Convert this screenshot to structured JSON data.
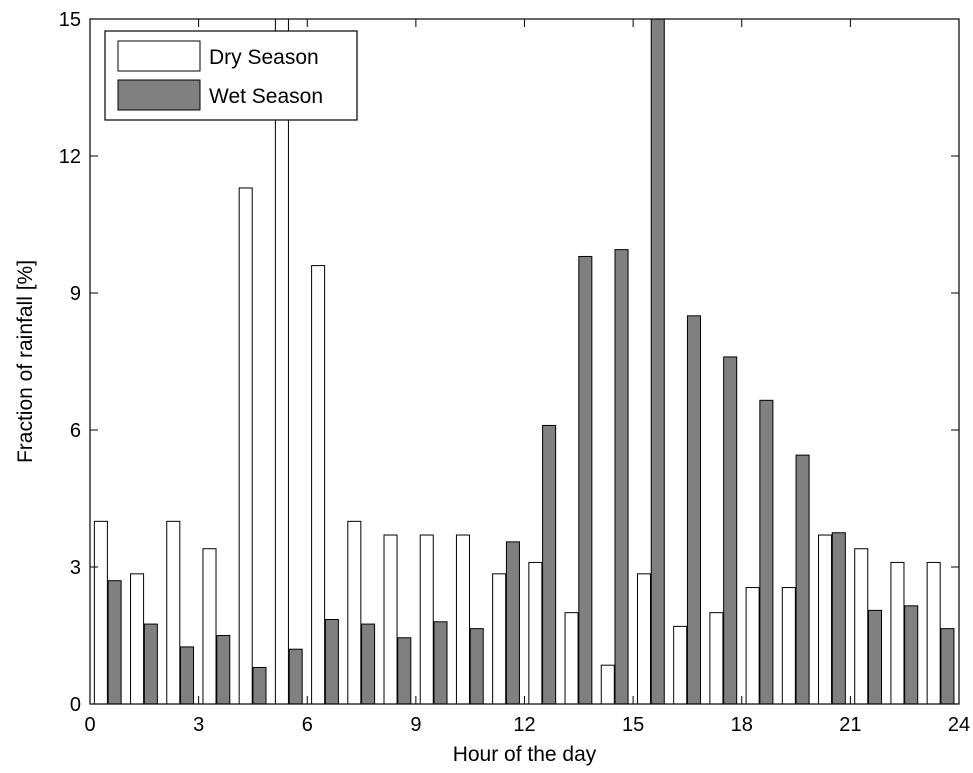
{
  "chart_data": {
    "type": "bar",
    "xlabel": "Hour of the day",
    "ylabel": "Fraction of rainfall [%]",
    "xlim": [
      0,
      24
    ],
    "ylim": [
      0,
      15
    ],
    "xticks": [
      0,
      3,
      6,
      9,
      12,
      15,
      18,
      21,
      24
    ],
    "yticks": [
      0,
      3,
      6,
      9,
      12,
      15
    ],
    "grid": false,
    "legend_position": "top-left",
    "categories": [
      0,
      1,
      2,
      3,
      4,
      5,
      6,
      7,
      8,
      9,
      10,
      11,
      12,
      13,
      14,
      15,
      16,
      17,
      18,
      19,
      20,
      21,
      22,
      23
    ],
    "series": [
      {
        "name": "Dry Season",
        "color": "#ffffff",
        "values": [
          4.0,
          2.85,
          4.0,
          3.4,
          11.3,
          15.0,
          9.6,
          4.0,
          3.7,
          3.7,
          3.7,
          2.85,
          3.1,
          2.0,
          0.85,
          2.85,
          1.7,
          2.0,
          2.55,
          2.55,
          3.7,
          3.4,
          3.1,
          3.1
        ]
      },
      {
        "name": "Wet Season",
        "color": "#808080",
        "values": [
          2.7,
          1.75,
          1.25,
          1.5,
          0.8,
          1.2,
          1.85,
          1.75,
          1.45,
          1.8,
          1.65,
          3.55,
          6.1,
          9.8,
          9.95,
          15.0,
          8.5,
          7.6,
          6.65,
          5.45,
          3.75,
          2.05,
          2.15,
          1.65
        ]
      }
    ]
  }
}
